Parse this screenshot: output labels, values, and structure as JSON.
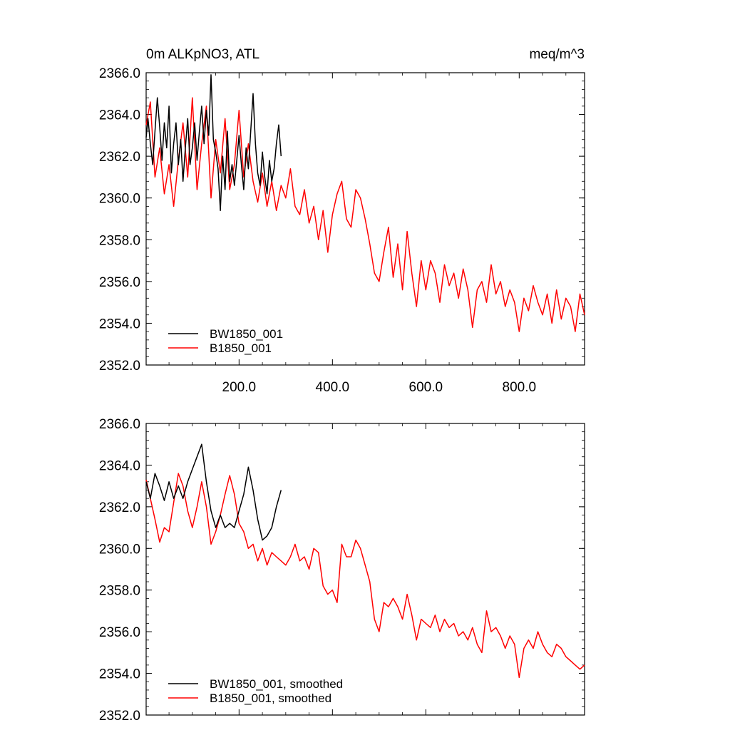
{
  "figure": {
    "title_left": "0m ALKpNO3, ATL",
    "title_right": "meq/m^3",
    "colors": {
      "BW1850_001": "#000000",
      "B1850_001": "#ff0000"
    }
  },
  "chart_data": [
    {
      "type": "line",
      "title": "0m ALKpNO3, ATL",
      "units": "meq/m^3",
      "xlabel": "",
      "ylabel": "",
      "xlim": [
        1,
        940
      ],
      "ylim": [
        2352,
        2366
      ],
      "x_ticks": [
        200,
        400,
        600,
        800
      ],
      "x_tick_labels": [
        "200.0",
        "400.0",
        "600.0",
        "800.0"
      ],
      "y_ticks": [
        2352,
        2354,
        2356,
        2358,
        2360,
        2362,
        2364,
        2366
      ],
      "y_tick_labels": [
        "2352.0",
        "2354.0",
        "2356.0",
        "2358.0",
        "2360.0",
        "2362.0",
        "2364.0",
        "2366.0"
      ],
      "legend": [
        "BW1850_001",
        "B1850_001"
      ],
      "legend_position": "bottom-left",
      "series": [
        {
          "name": "BW1850_001",
          "color": "#000000",
          "x": [
            1,
            5,
            10,
            15,
            20,
            25,
            30,
            35,
            40,
            45,
            50,
            55,
            60,
            65,
            70,
            75,
            80,
            85,
            90,
            95,
            100,
            105,
            110,
            115,
            120,
            125,
            130,
            135,
            140,
            145,
            150,
            155,
            160,
            165,
            170,
            175,
            180,
            185,
            190,
            195,
            200,
            205,
            210,
            215,
            220,
            225,
            230,
            235,
            240,
            245,
            250,
            255,
            260,
            265,
            270,
            275,
            280,
            285,
            290
          ],
          "values": [
            2362.9,
            2363.8,
            2362.6,
            2361.6,
            2363.2,
            2364.8,
            2363.4,
            2361.8,
            2363.6,
            2362.4,
            2364.4,
            2361.2,
            2362.6,
            2363.6,
            2361.6,
            2362.8,
            2360.8,
            2362.4,
            2363.8,
            2361.6,
            2362.4,
            2363.6,
            2361.8,
            2363.2,
            2364.4,
            2362.6,
            2364.2,
            2363.0,
            2365.9,
            2362.8,
            2362.2,
            2361.4,
            2359.4,
            2362.0,
            2360.4,
            2363.2,
            2360.8,
            2361.6,
            2360.6,
            2361.8,
            2363.0,
            2361.6,
            2360.4,
            2362.4,
            2361.4,
            2363.2,
            2365.0,
            2362.6,
            2361.2,
            2360.6,
            2362.2,
            2361.0,
            2360.2,
            2361.8,
            2360.8,
            2361.4,
            2362.6,
            2363.5,
            2362.0
          ]
        },
        {
          "name": "B1850_001",
          "color": "#ff0000",
          "x": [
            1,
            10,
            20,
            30,
            40,
            50,
            60,
            70,
            80,
            90,
            100,
            110,
            120,
            130,
            140,
            150,
            160,
            170,
            180,
            190,
            200,
            210,
            220,
            230,
            240,
            250,
            260,
            270,
            280,
            290,
            300,
            310,
            320,
            330,
            340,
            350,
            360,
            370,
            380,
            390,
            400,
            410,
            420,
            430,
            440,
            450,
            460,
            470,
            480,
            490,
            500,
            510,
            520,
            530,
            540,
            550,
            560,
            570,
            580,
            590,
            600,
            610,
            620,
            630,
            640,
            650,
            660,
            670,
            680,
            690,
            700,
            710,
            720,
            730,
            740,
            750,
            760,
            770,
            780,
            790,
            800,
            810,
            820,
            830,
            840,
            850,
            860,
            870,
            880,
            890,
            900,
            910,
            920,
            930,
            940
          ],
          "values": [
            2363.5,
            2364.6,
            2361.0,
            2362.4,
            2360.2,
            2361.6,
            2359.6,
            2361.8,
            2363.6,
            2361.0,
            2364.8,
            2360.4,
            2362.6,
            2364.4,
            2360.0,
            2362.8,
            2361.2,
            2363.8,
            2360.4,
            2361.6,
            2364.2,
            2361.0,
            2362.6,
            2360.8,
            2359.8,
            2361.2,
            2359.6,
            2360.8,
            2359.4,
            2360.6,
            2360.0,
            2361.4,
            2359.6,
            2359.2,
            2360.4,
            2358.8,
            2359.6,
            2358.0,
            2359.4,
            2357.4,
            2359.2,
            2360.2,
            2360.8,
            2359.0,
            2358.6,
            2360.4,
            2360.0,
            2359.0,
            2357.8,
            2356.4,
            2356.0,
            2357.4,
            2358.6,
            2356.2,
            2357.8,
            2355.6,
            2358.4,
            2356.4,
            2354.8,
            2357.0,
            2355.6,
            2357.0,
            2356.4,
            2355.0,
            2356.8,
            2355.8,
            2356.4,
            2355.2,
            2356.6,
            2355.6,
            2353.8,
            2355.6,
            2356.0,
            2355.0,
            2356.8,
            2355.4,
            2356.0,
            2354.8,
            2355.6,
            2355.0,
            2353.6,
            2355.2,
            2354.6,
            2355.8,
            2355.0,
            2354.4,
            2355.4,
            2354.0,
            2355.6,
            2354.2,
            2355.2,
            2354.8,
            2353.6,
            2355.4,
            2354.4
          ]
        }
      ]
    },
    {
      "type": "line",
      "title": "",
      "xlabel": "",
      "ylabel": "",
      "xlim": [
        1,
        940
      ],
      "ylim": [
        2352,
        2366
      ],
      "x_ticks": [
        200,
        400,
        600,
        800
      ],
      "x_tick_labels": [],
      "y_ticks": [
        2352,
        2354,
        2356,
        2358,
        2360,
        2362,
        2364,
        2366
      ],
      "y_tick_labels": [
        "2352.0",
        "2354.0",
        "2356.0",
        "2358.0",
        "2360.0",
        "2362.0",
        "2364.0",
        "2366.0"
      ],
      "legend": [
        "BW1850_001, smoothed",
        "B1850_001, smoothed"
      ],
      "legend_position": "bottom-left",
      "series": [
        {
          "name": "BW1850_001, smoothed",
          "color": "#000000",
          "x": [
            1,
            10,
            20,
            30,
            40,
            50,
            60,
            70,
            80,
            90,
            100,
            110,
            120,
            130,
            140,
            150,
            160,
            170,
            180,
            190,
            200,
            210,
            220,
            230,
            240,
            250,
            260,
            270,
            280,
            290
          ],
          "values": [
            2363.2,
            2362.4,
            2363.6,
            2363.0,
            2362.3,
            2363.2,
            2362.4,
            2363.0,
            2362.4,
            2363.2,
            2363.8,
            2364.4,
            2365.0,
            2363.2,
            2361.8,
            2361.0,
            2361.6,
            2361.0,
            2361.2,
            2361.0,
            2361.8,
            2362.6,
            2363.9,
            2362.8,
            2361.4,
            2360.4,
            2360.6,
            2361.0,
            2362.0,
            2362.8
          ]
        },
        {
          "name": "B1850_001, smoothed",
          "color": "#ff0000",
          "x": [
            1,
            10,
            20,
            30,
            40,
            50,
            60,
            70,
            80,
            90,
            100,
            110,
            120,
            130,
            140,
            150,
            160,
            170,
            180,
            190,
            200,
            210,
            220,
            230,
            240,
            250,
            260,
            270,
            280,
            290,
            300,
            310,
            320,
            330,
            340,
            350,
            360,
            370,
            380,
            390,
            400,
            410,
            420,
            430,
            440,
            450,
            460,
            470,
            480,
            490,
            500,
            510,
            520,
            530,
            540,
            550,
            560,
            570,
            580,
            590,
            600,
            610,
            620,
            630,
            640,
            650,
            660,
            670,
            680,
            690,
            700,
            710,
            720,
            730,
            740,
            750,
            760,
            770,
            780,
            790,
            800,
            810,
            820,
            830,
            840,
            850,
            860,
            870,
            880,
            890,
            900,
            910,
            920,
            930,
            940
          ],
          "values": [
            2363.3,
            2362.4,
            2361.4,
            2360.3,
            2361.0,
            2360.8,
            2362.2,
            2363.6,
            2363.0,
            2361.8,
            2361.0,
            2362.0,
            2363.2,
            2362.0,
            2360.2,
            2360.8,
            2361.6,
            2362.6,
            2363.5,
            2362.6,
            2361.2,
            2360.8,
            2360.0,
            2360.2,
            2359.4,
            2360.0,
            2359.2,
            2359.8,
            2359.6,
            2359.4,
            2359.2,
            2359.6,
            2360.2,
            2359.4,
            2359.6,
            2359.0,
            2360.0,
            2359.8,
            2358.2,
            2357.8,
            2358.0,
            2357.4,
            2360.2,
            2359.6,
            2359.6,
            2360.4,
            2360.0,
            2359.2,
            2358.4,
            2356.6,
            2356.0,
            2357.4,
            2357.2,
            2357.6,
            2357.2,
            2356.6,
            2357.8,
            2356.8,
            2355.6,
            2356.6,
            2356.4,
            2356.2,
            2356.8,
            2356.0,
            2356.6,
            2356.2,
            2356.4,
            2355.8,
            2356.0,
            2355.6,
            2356.2,
            2355.4,
            2355.0,
            2357.0,
            2356.0,
            2356.2,
            2355.8,
            2355.2,
            2355.8,
            2355.4,
            2353.8,
            2355.2,
            2355.6,
            2355.2,
            2356.0,
            2355.4,
            2355.0,
            2354.8,
            2355.4,
            2355.2,
            2354.8,
            2354.6,
            2354.4,
            2354.2,
            2354.4
          ]
        }
      ]
    }
  ]
}
